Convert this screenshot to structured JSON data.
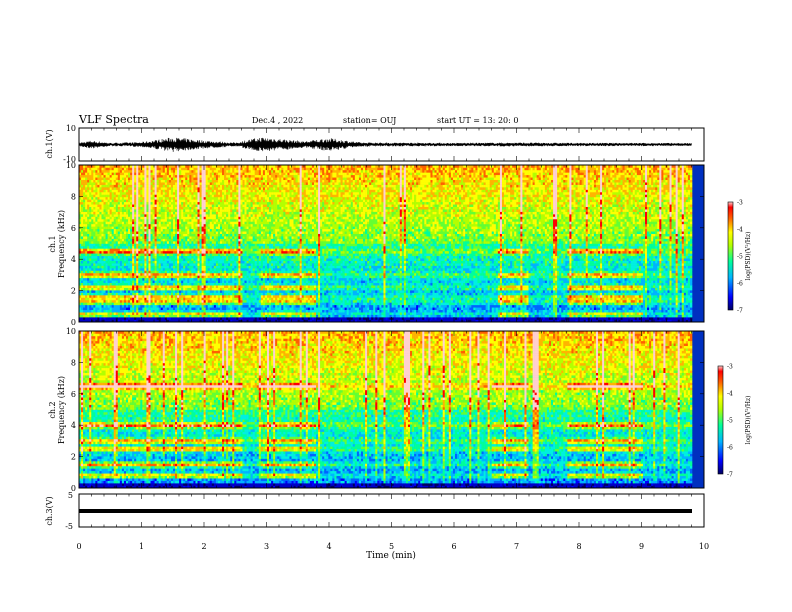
{
  "header": {
    "title": "VLF Spectra",
    "date": "Dec.4 , 2022",
    "station": "station= OUJ",
    "start_ut": "start UT =  13: 20: 0"
  },
  "colors": {
    "frame": "#000000",
    "background": "#ffffff",
    "colormap": [
      "#000080",
      "#0000ff",
      "#00c8ff",
      "#00ff80",
      "#c8ff00",
      "#ffff00",
      "#ff8000",
      "#ff0000",
      "#ffe6e6"
    ]
  },
  "chart_data": [
    {
      "type": "line",
      "panel": "waveform_ch1",
      "ylabel": "ch.1(V)",
      "ylim": [
        -10,
        10
      ],
      "yticks": [
        "10",
        "-10"
      ],
      "xlim": [
        0,
        10
      ],
      "description_series": "raw waveform, bursty amplitude",
      "envelope": {
        "x": [
          0,
          0.2,
          0.5,
          1.0,
          1.5,
          2.0,
          2.5,
          2.9,
          3.1,
          3.6,
          4.0,
          4.5,
          5.0,
          6.0,
          7.0,
          8.0,
          9.0,
          9.8
        ],
        "amplitude": [
          1.2,
          2.5,
          1.0,
          1.5,
          4.5,
          2.5,
          1.2,
          4.5,
          4.0,
          2.0,
          4.0,
          1.3,
          1.2,
          1.0,
          1.2,
          1.0,
          1.0,
          0.9
        ]
      }
    },
    {
      "type": "heatmap",
      "panel": "spectrogram_ch1",
      "ylabel": "ch.1\nFrequency (kHz)",
      "ylim": [
        0,
        10
      ],
      "yticks": [
        "0",
        "2",
        "4",
        "6",
        "8",
        "10"
      ],
      "xlim": [
        0,
        10
      ],
      "colorbar": {
        "label": "log(PSD)(V²/Hz)",
        "range": [
          -7,
          -3
        ],
        "ticks": [
          "-3",
          "-4",
          "-5",
          "-6",
          "-7"
        ]
      },
      "bands_kHz": [
        0.5,
        1.3,
        1.6,
        2.2,
        3.0,
        4.5
      ],
      "active_intervals_min": [
        [
          0,
          2.6
        ],
        [
          2.9,
          3.8
        ],
        [
          6.7,
          7.2
        ],
        [
          7.8,
          9.0
        ]
      ]
    },
    {
      "type": "heatmap",
      "panel": "spectrogram_ch2",
      "ylabel": "ch.2\nFrequency (kHz)",
      "ylim": [
        0,
        10
      ],
      "yticks": [
        "0",
        "2",
        "4",
        "6",
        "8",
        "10"
      ],
      "xlim": [
        0,
        10
      ],
      "colorbar": {
        "label": "log(PSD)(V²/Hz)",
        "range": [
          -7,
          -3
        ],
        "ticks": [
          "-3",
          "-4",
          "-5",
          "-6",
          "-7"
        ]
      },
      "bands_kHz": [
        0.8,
        1.5,
        2.5,
        3.0,
        4.0,
        6.5
      ],
      "active_intervals_min": [
        [
          0,
          2.6
        ],
        [
          2.9,
          3.8
        ],
        [
          6.6,
          7.2
        ],
        [
          7.8,
          9.0
        ]
      ]
    },
    {
      "type": "line",
      "panel": "waveform_ch3",
      "ylabel": "ch.3(V)",
      "ylim": [
        -5,
        5
      ],
      "yticks": [
        "5",
        "-5"
      ],
      "xlim": [
        0,
        10
      ],
      "x": [
        0,
        9.8
      ],
      "y": [
        -0.8,
        -0.8
      ]
    }
  ],
  "xaxis": {
    "label": "Time (min)",
    "ticks": [
      "0",
      "1",
      "2",
      "3",
      "4",
      "5",
      "6",
      "7",
      "8",
      "9",
      "10"
    ]
  }
}
